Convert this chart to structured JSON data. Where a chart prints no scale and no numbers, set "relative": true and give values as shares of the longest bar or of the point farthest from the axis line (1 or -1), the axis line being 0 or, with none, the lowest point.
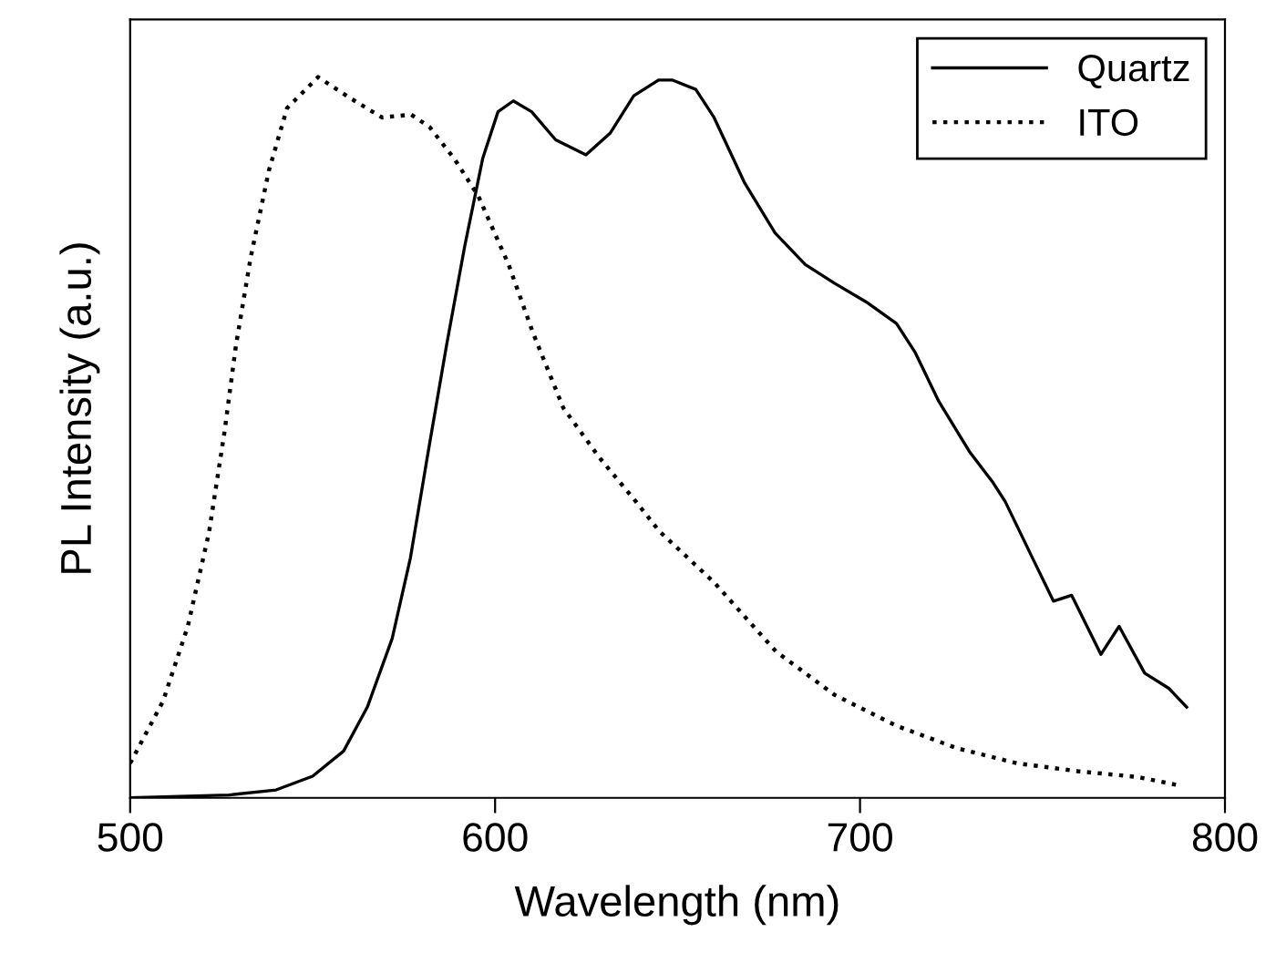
{
  "chart_data": {
    "type": "line",
    "relative": true,
    "xlabel": "Wavelength (nm)",
    "ylabel": "PL Intensity (a.u.)",
    "xlim": [
      500,
      800
    ],
    "xticks": [
      500,
      600,
      700,
      800
    ],
    "tick_labels": "x",
    "legend": "top right",
    "grid": false,
    "marker": "none",
    "series": [
      {
        "name": "Quartz",
        "color": "#000000",
        "line_style": "solid",
        "x": [
          500,
          527,
          540,
          550,
          558.5,
          565,
          571.8,
          576.8,
          581.7,
          586.7,
          591.7,
          596.6,
          600.8,
          605,
          610,
          616.6,
          624.9,
          631.5,
          638,
          644.8,
          648.5,
          655,
          660,
          668.4,
          676.7,
          685,
          693,
          701.7,
          710,
          715,
          721.6,
          729.9,
          736.5,
          739.8,
          748,
          753,
          758,
          766,
          771,
          778,
          784.6,
          789.5
        ],
        "values": [
          0,
          0.004,
          0.011,
          0.03,
          0.065,
          0.126,
          0.221,
          0.333,
          0.481,
          0.628,
          0.766,
          0.887,
          0.952,
          0.967,
          0.952,
          0.913,
          0.892,
          0.922,
          0.974,
          0.996,
          0.996,
          0.983,
          0.944,
          0.853,
          0.784,
          0.74,
          0.714,
          0.688,
          0.658,
          0.619,
          0.55,
          0.481,
          0.437,
          0.411,
          0.325,
          0.273,
          0.281,
          0.199,
          0.238,
          0.173,
          0.152,
          0.126
        ]
      },
      {
        "name": "ITO",
        "color": "#000000",
        "line_style": "dotted",
        "x": [
          500,
          509,
          515.8,
          521.6,
          525.8,
          529,
          533,
          538,
          543,
          551.5,
          560.6,
          569,
          577,
          582,
          588.8,
          595.4,
          603.7,
          610.4,
          618.7,
          628.6,
          638.6,
          645,
          660,
          677,
          693,
          710,
          726.5,
          743,
          759.6,
          776,
          787.8
        ],
        "values": [
          0.048,
          0.134,
          0.238,
          0.368,
          0.506,
          0.628,
          0.749,
          0.87,
          0.957,
          1,
          0.97,
          0.944,
          0.948,
          0.931,
          0.887,
          0.835,
          0.74,
          0.645,
          0.541,
          0.472,
          0.411,
          0.37,
          0.299,
          0.203,
          0.143,
          0.1,
          0.069,
          0.048,
          0.037,
          0.029,
          0.017
        ]
      }
    ]
  }
}
